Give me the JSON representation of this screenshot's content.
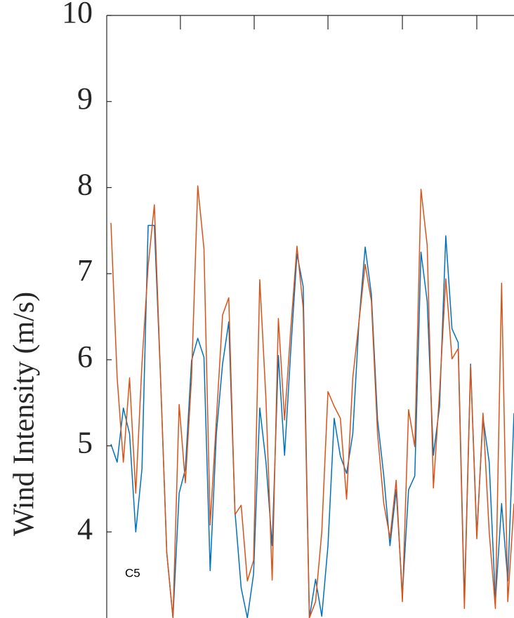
{
  "chart_data": {
    "type": "line",
    "y_label": "Wind Intensity (m/s)",
    "annotation": "C5",
    "x": [
      0,
      1,
      2,
      3,
      4,
      5,
      6,
      7,
      8,
      9,
      10,
      11,
      12,
      13,
      14,
      15,
      16,
      17,
      18,
      19,
      20,
      21,
      22,
      23,
      24,
      25,
      26,
      27,
      28,
      29,
      30,
      31,
      32,
      33,
      34,
      35,
      36,
      37,
      38,
      39,
      40,
      41,
      42,
      43,
      44,
      45,
      46,
      47,
      48,
      49,
      50,
      51,
      52,
      53,
      54,
      55,
      56,
      57,
      58,
      59,
      60,
      61,
      62,
      63,
      64,
      65
    ],
    "xlim": [
      -0.68,
      65
    ],
    "xticks": [
      11.2,
      23.1,
      35.0,
      47.0,
      59.0
    ],
    "ylim": [
      3,
      10
    ],
    "yticks": [
      4,
      5,
      6,
      7,
      8,
      9,
      10
    ],
    "series": [
      {
        "color": "#0072BD",
        "values": [
          5.02,
          4.81,
          5.44,
          5.14,
          4.0,
          4.73,
          7.56,
          7.56,
          5.79,
          3.76,
          3.0,
          4.45,
          4.73,
          5.99,
          6.25,
          6.03,
          3.55,
          5.14,
          5.95,
          6.44,
          4.24,
          3.35,
          3.0,
          3.51,
          5.44,
          4.81,
          3.84,
          6.05,
          4.89,
          6.11,
          7.23,
          6.85,
          3.0,
          3.45,
          3.02,
          3.84,
          5.32,
          4.88,
          4.68,
          5.14,
          6.44,
          7.31,
          6.76,
          5.3,
          4.65,
          3.84,
          4.49,
          3.27,
          4.49,
          4.65,
          7.25,
          6.68,
          4.89,
          5.46,
          7.44,
          6.36,
          6.2,
          3.19,
          5.95,
          3.96,
          5.33,
          4.81,
          3.19,
          4.33,
          3.43,
          5.38
        ]
      },
      {
        "color": "#D95319",
        "values": [
          7.59,
          5.79,
          4.81,
          5.79,
          4.45,
          5.95,
          7.09,
          7.8,
          5.79,
          3.76,
          3.0,
          5.48,
          4.57,
          5.79,
          8.02,
          7.29,
          4.08,
          5.3,
          6.52,
          6.72,
          4.2,
          4.31,
          3.43,
          3.67,
          6.93,
          5.54,
          3.44,
          6.48,
          5.3,
          6.36,
          7.32,
          6.6,
          3.0,
          3.19,
          4.0,
          5.63,
          5.46,
          5.32,
          4.38,
          5.79,
          6.44,
          7.11,
          6.68,
          5.14,
          4.33,
          3.93,
          4.6,
          3.19,
          5.42,
          4.99,
          7.98,
          7.33,
          4.51,
          5.63,
          6.94,
          6.01,
          6.13,
          3.11,
          5.93,
          3.92,
          5.38,
          4.0,
          3.11,
          6.89,
          3.19,
          4.33
        ]
      }
    ]
  }
}
